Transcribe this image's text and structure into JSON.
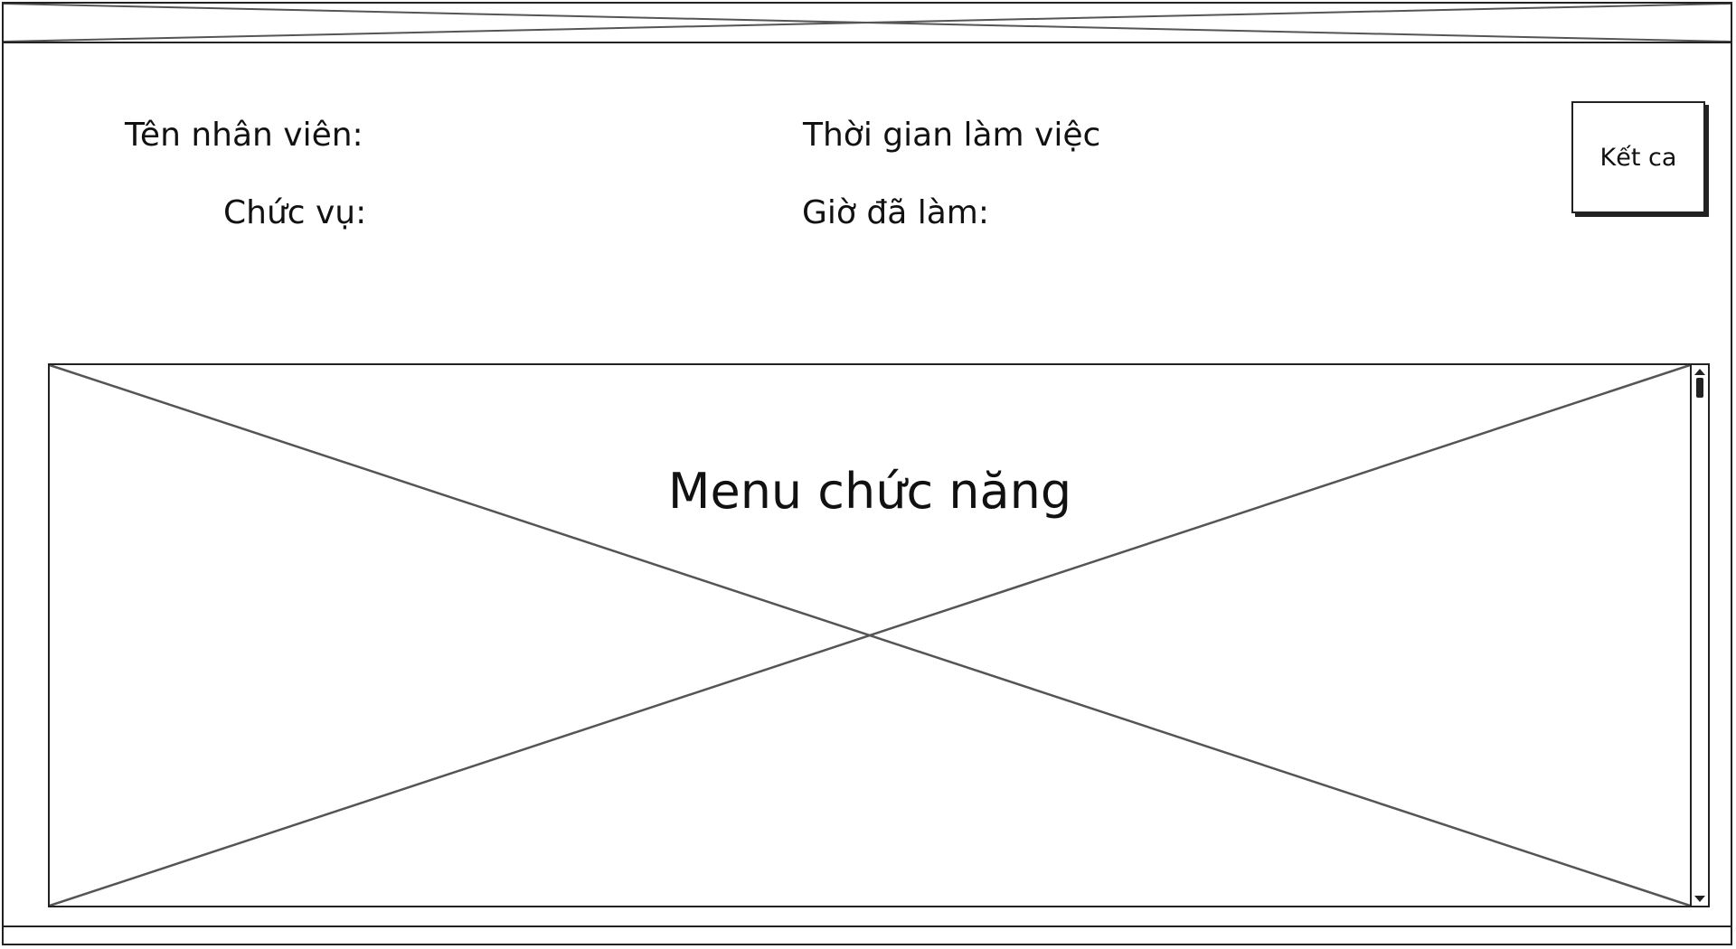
{
  "employee_info": {
    "name_label": "Tên nhân viên:",
    "position_label": "Chức vụ:",
    "work_time_label": "Thời gian làm việc",
    "hours_worked_label": "Giờ đã làm:"
  },
  "actions": {
    "end_shift_label": "Kết ca"
  },
  "menu": {
    "title": "Menu chức năng"
  }
}
